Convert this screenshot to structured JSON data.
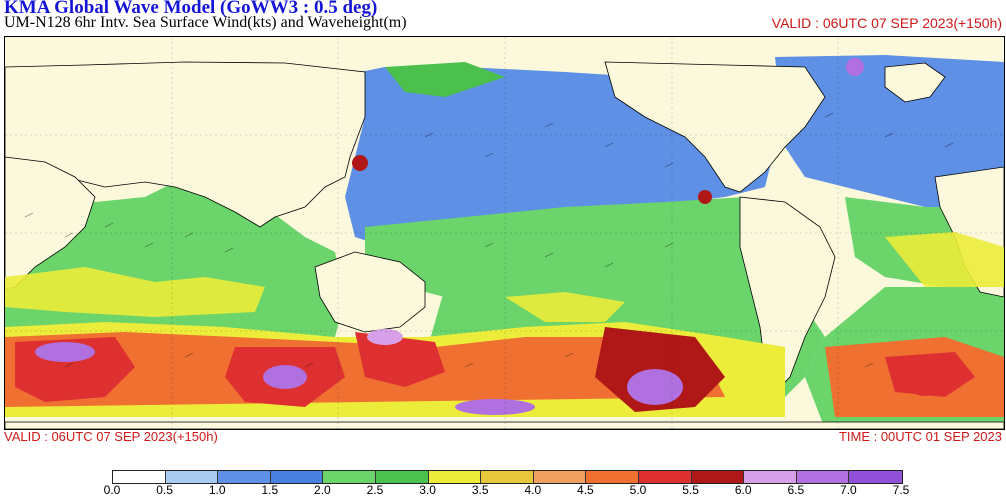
{
  "header": {
    "title": "KMA  Global Wave Model (GoWW3 : 0.5 deg)",
    "subtitle": "UM-N128  6hr Intv. Sea Surface Wind(kts) and Waveheight(m)",
    "valid_top": "VALID : 06UTC 07 SEP 2023(+150h)"
  },
  "footer": {
    "valid": "VALID : 06UTC 07 SEP 2023(+150h)",
    "time": "TIME : 00UTC 01 SEP 2023"
  },
  "map": {
    "ocean_base_color": "#6699e6",
    "land_color": "#fbf8dc"
  },
  "legend": {
    "ticks": [
      "0.0",
      "0.5",
      "1.0",
      "1.5",
      "2.0",
      "2.5",
      "3.0",
      "3.5",
      "4.0",
      "4.5",
      "5.0",
      "5.5",
      "6.0",
      "6.5",
      "7.0",
      "7.5"
    ],
    "colors": [
      "#ffffff",
      "#aaccf0",
      "#5e90e6",
      "#4a80e0",
      "#6bd46b",
      "#4cc04c",
      "#ecec3a",
      "#e6c83a",
      "#f0a060",
      "#ef7030",
      "#de3030",
      "#b01818",
      "#d8a0e8",
      "#b070e0",
      "#9050d8"
    ]
  }
}
